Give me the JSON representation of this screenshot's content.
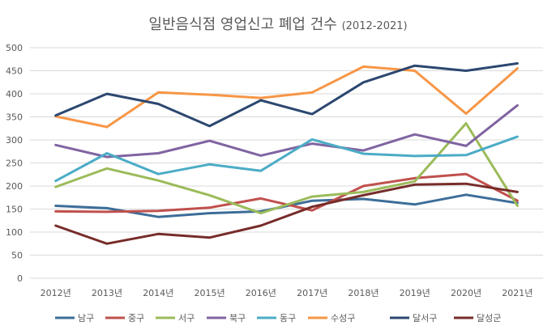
{
  "chart_data": {
    "type": "line",
    "title": "일반음식점 영업신고 폐업 건수",
    "subtitle": "(2012-2021)",
    "categories": [
      "2012년",
      "2013년",
      "2014년",
      "2015년",
      "2016년",
      "2017년",
      "2018년",
      "2019년",
      "2020년",
      "2021년"
    ],
    "ylim": [
      0,
      500
    ],
    "yticks": [
      0,
      50,
      100,
      150,
      200,
      250,
      300,
      350,
      400,
      450,
      500
    ],
    "grid": true,
    "legend_position": "bottom",
    "series": [
      {
        "name": "남구",
        "color": "#3d6d99",
        "values": [
          157,
          152,
          133,
          141,
          145,
          168,
          172,
          160,
          181,
          163
        ]
      },
      {
        "name": "중구",
        "color": "#c0504d",
        "values": [
          145,
          144,
          146,
          153,
          173,
          147,
          200,
          217,
          226,
          168
        ]
      },
      {
        "name": "서구",
        "color": "#9bbb59",
        "values": [
          198,
          238,
          212,
          180,
          141,
          177,
          187,
          210,
          336,
          157
        ]
      },
      {
        "name": "북구",
        "color": "#8064a2",
        "values": [
          289,
          263,
          271,
          298,
          266,
          292,
          277,
          312,
          287,
          375
        ]
      },
      {
        "name": "동구",
        "color": "#4bacc6",
        "values": [
          211,
          271,
          226,
          247,
          233,
          301,
          270,
          265,
          267,
          307
        ]
      },
      {
        "name": "수성구",
        "color": "#f79646",
        "values": [
          351,
          328,
          403,
          398,
          391,
          403,
          459,
          450,
          357,
          455
        ]
      },
      {
        "name": "달서구",
        "color": "#2c4770",
        "values": [
          353,
          400,
          378,
          330,
          386,
          356,
          425,
          461,
          450,
          466
        ]
      },
      {
        "name": "달성군",
        "color": "#772c2a",
        "values": [
          114,
          75,
          96,
          88,
          114,
          155,
          180,
          203,
          205,
          187
        ]
      }
    ]
  }
}
